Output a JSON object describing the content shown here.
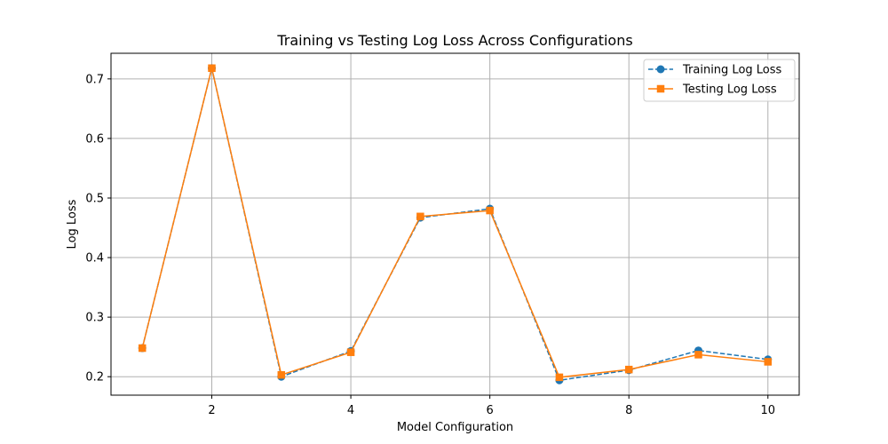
{
  "chart_data": {
    "type": "line",
    "title": "Training vs Testing Log Loss Across Configurations",
    "xlabel": "Model Configuration",
    "ylabel": "Log Loss",
    "x": [
      1,
      2,
      3,
      4,
      5,
      6,
      7,
      8,
      9,
      10
    ],
    "xlim": [
      0.55,
      10.45
    ],
    "ylim": [
      0.169,
      0.743
    ],
    "xticks": [
      2,
      4,
      6,
      8,
      10
    ],
    "yticks": [
      0.2,
      0.3,
      0.4,
      0.5,
      0.6,
      0.7
    ],
    "ytick_labels": [
      "0.2",
      "0.3",
      "0.4",
      "0.5",
      "0.6",
      "0.7"
    ],
    "grid": true,
    "legend_position": "top-right",
    "series": [
      {
        "name": "Training Log Loss",
        "color": "#1f77b4",
        "marker": "circle",
        "linestyle": "dashed",
        "values": [
          0.248,
          0.718,
          0.2,
          0.243,
          0.467,
          0.482,
          0.194,
          0.211,
          0.244,
          0.229
        ]
      },
      {
        "name": "Testing Log Loss",
        "color": "#ff7f0e",
        "marker": "square",
        "linestyle": "solid",
        "values": [
          0.248,
          0.718,
          0.203,
          0.241,
          0.469,
          0.479,
          0.199,
          0.212,
          0.237,
          0.225
        ]
      }
    ]
  }
}
